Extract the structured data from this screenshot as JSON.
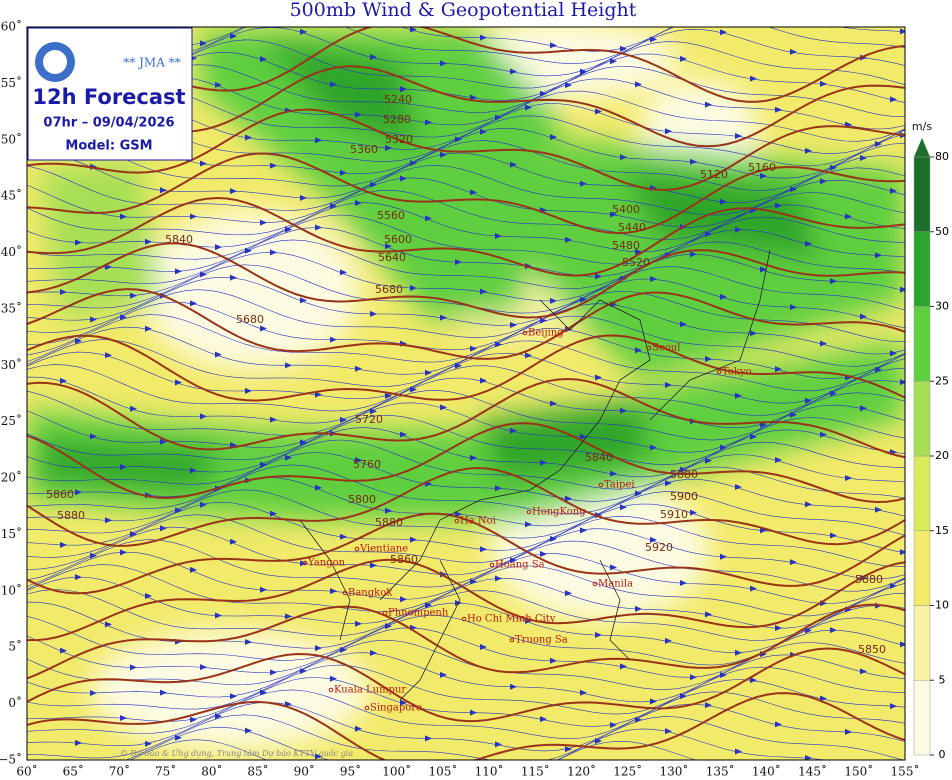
{
  "title": "500mb Wind & Geopotential Height",
  "info": {
    "agency": "** JMA **",
    "forecast": "12h Forecast",
    "time": "07hr – 09/04/2026",
    "model": "Model: GSM"
  },
  "lon_labels": [
    "60˚",
    "65˚",
    "70˚",
    "75˚",
    "80˚",
    "85˚",
    "90˚",
    "95˚",
    "100˚",
    "105˚",
    "110˚",
    "115˚",
    "120˚",
    "125˚",
    "130˚",
    "135˚",
    "140˚",
    "145˚",
    "150˚",
    "155˚"
  ],
  "lat_labels": [
    "60˚",
    "55˚",
    "50˚",
    "45˚",
    "40˚",
    "35˚",
    "30˚",
    "25˚",
    "20˚",
    "15˚",
    "10˚",
    "5˚",
    "0˚",
    "−5˚"
  ],
  "colorbar": {
    "unit": "m/s",
    "ticks": [
      0,
      5,
      10,
      15,
      20,
      25,
      30,
      50,
      80
    ],
    "colors": [
      "#fdfbe2",
      "#f7f2a6",
      "#f2ea6a",
      "#d9ec5a",
      "#a6df55",
      "#5fcf40",
      "#2da52c",
      "#1c6e2a"
    ]
  },
  "contour_labels": [
    "5240",
    "5280",
    "5320",
    "5360",
    "5400",
    "5440",
    "5480",
    "5520",
    "5560",
    "5600",
    "5640",
    "5680",
    "5720",
    "5760",
    "5800",
    "5840",
    "5860",
    "5880",
    "5900",
    "5910",
    "5920",
    "5120",
    "5160",
    "5680",
    "5840",
    "5880",
    "5860",
    "5880",
    "5880",
    "5850"
  ],
  "cities": [
    "Beijing",
    "Seoul",
    "Tokyo",
    "Taipei",
    "HongKong",
    "Ha Noi",
    "Hoang Sa",
    "Manila",
    "Yangon",
    "Vientiane",
    "Bangkok",
    "Phnompenh",
    "Ho Chi Minh City",
    "Truong Sa",
    "Kuala Lumpur",
    "Singapore"
  ],
  "credit": "© Dự báo & Ứng dụng, Trung tâm Dự báo KTTV quốc gia"
}
